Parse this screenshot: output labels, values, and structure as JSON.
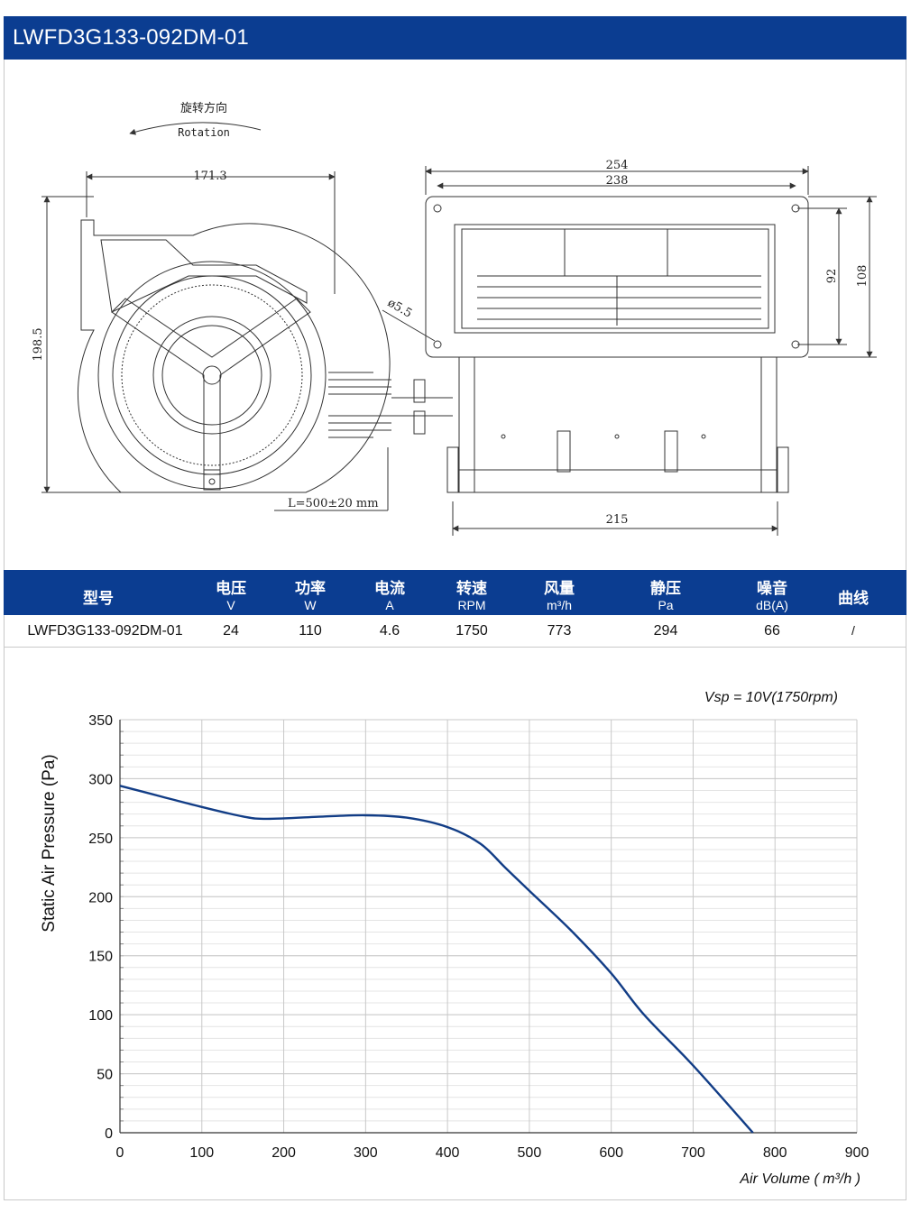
{
  "title": "LWFD3G133-092DM-01",
  "drawing": {
    "rotation_cn": "旋转方向",
    "rotation_en": "Rotation",
    "dim_width": "171.3",
    "dim_height": "198.5",
    "dim_hole": "ø5.5",
    "dim_cable": "L=500±20 mm",
    "dim_254": "254",
    "dim_238": "238",
    "dim_92": "92",
    "dim_108": "108",
    "dim_215": "215"
  },
  "specs": {
    "headers": [
      {
        "label": "型号",
        "unit": ""
      },
      {
        "label": "电压",
        "unit": "V"
      },
      {
        "label": "功率",
        "unit": "W"
      },
      {
        "label": "电流",
        "unit": "A"
      },
      {
        "label": "转速",
        "unit": "RPM"
      },
      {
        "label": "风量",
        "unit": "m³/h"
      },
      {
        "label": "静压",
        "unit": "Pa"
      },
      {
        "label": "噪音",
        "unit": "dB(A)"
      },
      {
        "label": "曲线",
        "unit": ""
      }
    ],
    "row": [
      "LWFD3G133-092DM-01",
      "24",
      "110",
      "4.6",
      "1750",
      "773",
      "294",
      "66",
      "/"
    ]
  },
  "colors": {
    "brand": "#0b3d91",
    "curve": "#123d86",
    "grid": "#c8c8c8"
  },
  "chart_data": {
    "type": "line",
    "annotation": "Vsp = 10V(1750rpm)",
    "xlabel": "Air Volume ( m³/h )",
    "ylabel": "Static Air Pressure  (Pa)",
    "xlim": [
      0,
      900
    ],
    "ylim": [
      0,
      350
    ],
    "xticks": [
      0,
      100,
      200,
      300,
      400,
      500,
      600,
      700,
      800,
      900
    ],
    "yticks": [
      0,
      50,
      100,
      150,
      200,
      250,
      300,
      350
    ],
    "grid": true,
    "series": [
      {
        "x": [
          0,
          50,
          100,
          150,
          180,
          250,
          300,
          350,
          400,
          440,
          470,
          500,
          550,
          600,
          640,
          700,
          773
        ],
        "y": [
          294,
          285,
          276,
          268,
          266,
          268,
          269,
          267,
          259,
          245,
          225,
          205,
          172,
          135,
          100,
          57,
          0
        ]
      }
    ]
  }
}
